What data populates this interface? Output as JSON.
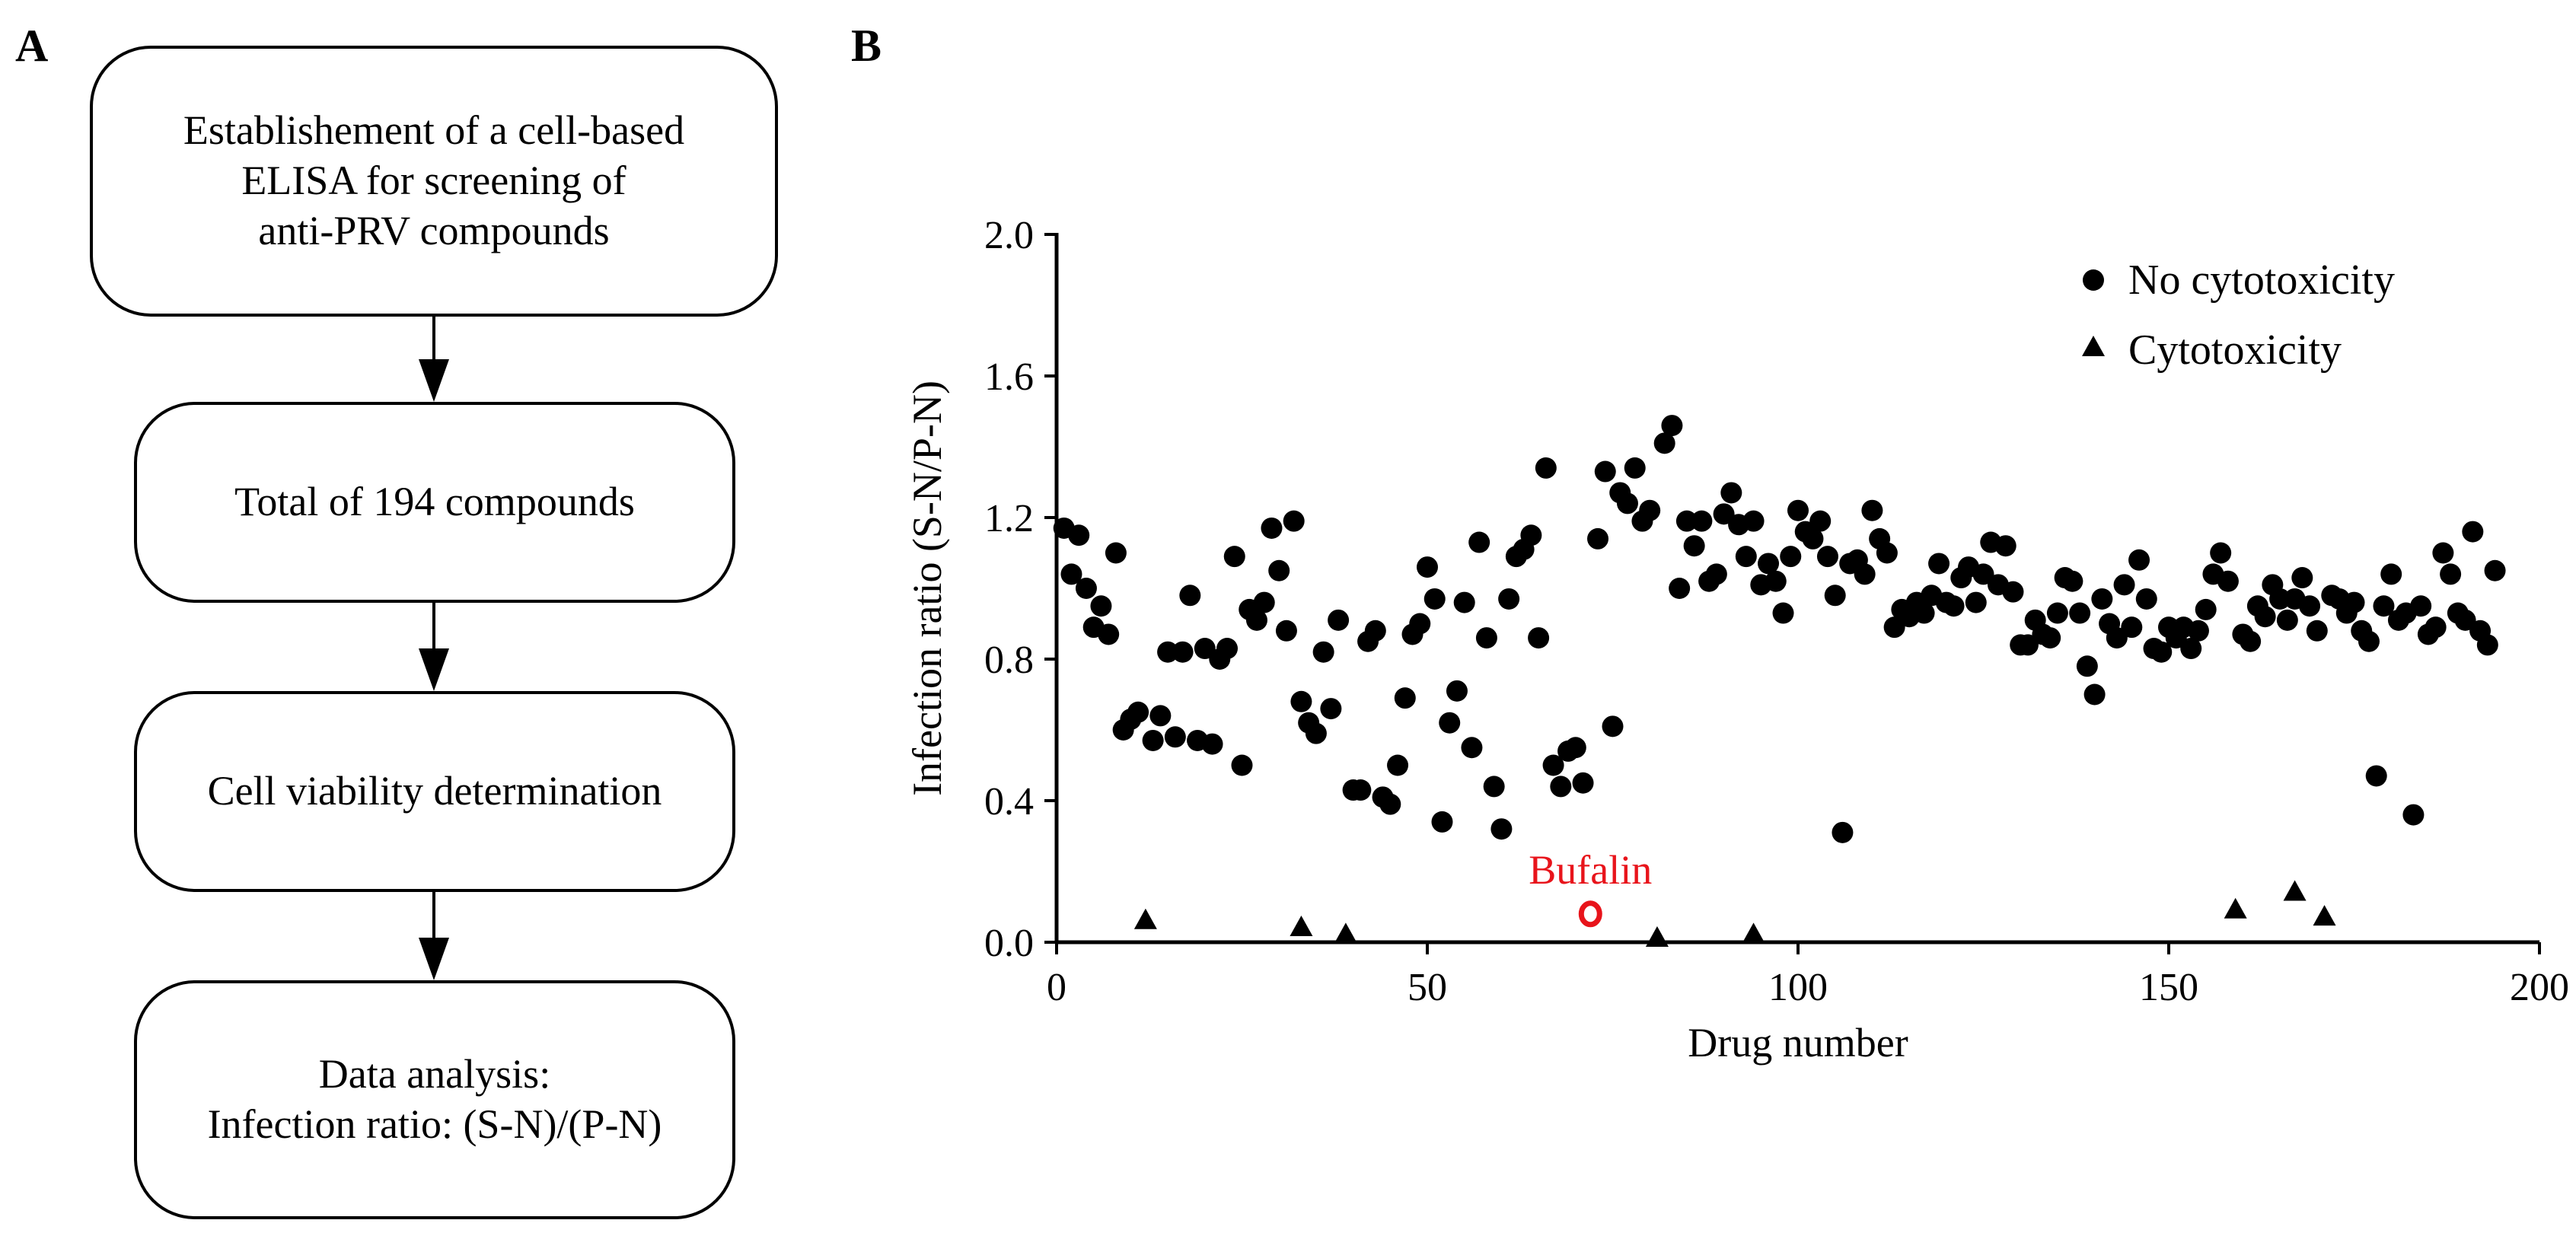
{
  "panels": {
    "a_label": "A",
    "b_label": "B"
  },
  "flowchart": {
    "steps": [
      {
        "lines": [
          "Establishement of a cell-based",
          "ELISA for screening of",
          "anti-PRV compounds"
        ]
      },
      {
        "lines": [
          "Total of 194 compounds"
        ]
      },
      {
        "lines": [
          "Cell viability determination"
        ]
      },
      {
        "lines": [
          "Data analysis:",
          "Infection ratio: (S-N)/(P-N)"
        ]
      }
    ]
  },
  "chart_data": {
    "type": "scatter",
    "xlabel": "Drug number",
    "ylabel": "Infection ratio (S-N/P-N)",
    "xlim": [
      0,
      200
    ],
    "ylim": [
      0,
      2.0
    ],
    "xticks": [
      "0",
      "50",
      "100",
      "150",
      "200"
    ],
    "yticks": [
      "0.0",
      "0.4",
      "0.8",
      "1.2",
      "1.6",
      "2.0"
    ],
    "legend_position": "top-right",
    "colors": {
      "points": "#000000",
      "highlight": "#e8141b"
    },
    "series": [
      {
        "name": "No cytotoxicity",
        "marker": "circle",
        "points": [
          [
            1,
            1.17
          ],
          [
            2,
            1.04
          ],
          [
            3,
            1.15
          ],
          [
            4,
            1.0
          ],
          [
            5,
            0.89
          ],
          [
            6,
            0.95
          ],
          [
            7,
            0.87
          ],
          [
            8,
            1.1
          ],
          [
            9,
            0.6
          ],
          [
            10,
            0.63
          ],
          [
            11,
            0.65
          ],
          [
            13,
            0.57
          ],
          [
            14,
            0.64
          ],
          [
            15,
            0.82
          ],
          [
            16,
            0.58
          ],
          [
            17,
            0.82
          ],
          [
            18,
            0.98
          ],
          [
            19,
            0.57
          ],
          [
            20,
            0.83
          ],
          [
            21,
            0.56
          ],
          [
            22,
            0.8
          ],
          [
            23,
            0.83
          ],
          [
            24,
            1.09
          ],
          [
            25,
            0.5
          ],
          [
            26,
            0.94
          ],
          [
            27,
            0.91
          ],
          [
            28,
            0.96
          ],
          [
            29,
            1.17
          ],
          [
            30,
            1.05
          ],
          [
            31,
            0.88
          ],
          [
            32,
            1.19
          ],
          [
            33,
            0.68
          ],
          [
            34,
            0.62
          ],
          [
            35,
            0.59
          ],
          [
            36,
            0.82
          ],
          [
            37,
            0.66
          ],
          [
            38,
            0.91
          ],
          [
            40,
            0.43
          ],
          [
            41,
            0.43
          ],
          [
            42,
            0.85
          ],
          [
            43,
            0.88
          ],
          [
            44,
            0.41
          ],
          [
            45,
            0.39
          ],
          [
            46,
            0.5
          ],
          [
            47,
            0.69
          ],
          [
            48,
            0.87
          ],
          [
            49,
            0.9
          ],
          [
            50,
            1.06
          ],
          [
            51,
            0.97
          ],
          [
            52,
            0.34
          ],
          [
            53,
            0.62
          ],
          [
            54,
            0.71
          ],
          [
            55,
            0.96
          ],
          [
            56,
            0.55
          ],
          [
            57,
            1.13
          ],
          [
            58,
            0.86
          ],
          [
            59,
            0.44
          ],
          [
            60,
            0.32
          ],
          [
            61,
            0.97
          ],
          [
            62,
            1.09
          ],
          [
            63,
            1.11
          ],
          [
            64,
            1.15
          ],
          [
            65,
            0.86
          ],
          [
            66,
            1.34
          ],
          [
            67,
            0.5
          ],
          [
            68,
            0.44
          ],
          [
            69,
            0.54
          ],
          [
            70,
            0.55
          ],
          [
            71,
            0.45
          ],
          [
            73,
            1.14
          ],
          [
            74,
            1.33
          ],
          [
            75,
            0.61
          ],
          [
            76,
            1.27
          ],
          [
            77,
            1.24
          ],
          [
            78,
            1.34
          ],
          [
            79,
            1.19
          ],
          [
            80,
            1.22
          ],
          [
            82,
            1.41
          ],
          [
            83,
            1.46
          ],
          [
            84,
            1.0
          ],
          [
            85,
            1.19
          ],
          [
            86,
            1.12
          ],
          [
            87,
            1.19
          ],
          [
            88,
            1.02
          ],
          [
            89,
            1.04
          ],
          [
            90,
            1.21
          ],
          [
            91,
            1.27
          ],
          [
            92,
            1.18
          ],
          [
            93,
            1.09
          ],
          [
            94,
            1.19
          ],
          [
            95,
            1.01
          ],
          [
            96,
            1.07
          ],
          [
            97,
            1.02
          ],
          [
            98,
            0.93
          ],
          [
            99,
            1.09
          ],
          [
            100,
            1.22
          ],
          [
            101,
            1.16
          ],
          [
            102,
            1.14
          ],
          [
            103,
            1.19
          ],
          [
            104,
            1.09
          ],
          [
            105,
            0.98
          ],
          [
            106,
            0.31
          ],
          [
            107,
            1.07
          ],
          [
            108,
            1.08
          ],
          [
            109,
            1.04
          ],
          [
            110,
            1.22
          ],
          [
            111,
            1.14
          ],
          [
            112,
            1.1
          ],
          [
            113,
            0.89
          ],
          [
            114,
            0.94
          ],
          [
            115,
            0.92
          ],
          [
            116,
            0.96
          ],
          [
            117,
            0.93
          ],
          [
            118,
            0.98
          ],
          [
            119,
            1.07
          ],
          [
            120,
            0.96
          ],
          [
            121,
            0.95
          ],
          [
            122,
            1.03
          ],
          [
            123,
            1.06
          ],
          [
            124,
            0.96
          ],
          [
            125,
            1.04
          ],
          [
            126,
            1.13
          ],
          [
            127,
            1.01
          ],
          [
            128,
            1.12
          ],
          [
            129,
            0.99
          ],
          [
            130,
            0.84
          ],
          [
            131,
            0.84
          ],
          [
            132,
            0.91
          ],
          [
            133,
            0.87
          ],
          [
            134,
            0.86
          ],
          [
            135,
            0.93
          ],
          [
            136,
            1.03
          ],
          [
            137,
            1.02
          ],
          [
            138,
            0.93
          ],
          [
            139,
            0.78
          ],
          [
            140,
            0.7
          ],
          [
            141,
            0.97
          ],
          [
            142,
            0.9
          ],
          [
            143,
            0.86
          ],
          [
            144,
            1.01
          ],
          [
            145,
            0.89
          ],
          [
            146,
            1.08
          ],
          [
            147,
            0.97
          ],
          [
            148,
            0.83
          ],
          [
            149,
            0.82
          ],
          [
            150,
            0.89
          ],
          [
            151,
            0.86
          ],
          [
            152,
            0.89
          ],
          [
            153,
            0.83
          ],
          [
            154,
            0.88
          ],
          [
            155,
            0.94
          ],
          [
            156,
            1.04
          ],
          [
            157,
            1.1
          ],
          [
            158,
            1.02
          ],
          [
            160,
            0.87
          ],
          [
            161,
            0.85
          ],
          [
            162,
            0.95
          ],
          [
            163,
            0.92
          ],
          [
            164,
            1.01
          ],
          [
            165,
            0.97
          ],
          [
            166,
            0.91
          ],
          [
            167,
            0.97
          ],
          [
            168,
            1.03
          ],
          [
            169,
            0.95
          ],
          [
            170,
            0.88
          ],
          [
            172,
            0.98
          ],
          [
            173,
            0.97
          ],
          [
            174,
            0.93
          ],
          [
            175,
            0.96
          ],
          [
            176,
            0.88
          ],
          [
            177,
            0.85
          ],
          [
            178,
            0.47
          ],
          [
            179,
            0.95
          ],
          [
            180,
            1.04
          ],
          [
            181,
            0.91
          ],
          [
            182,
            0.93
          ],
          [
            183,
            0.36
          ],
          [
            184,
            0.95
          ],
          [
            185,
            0.87
          ],
          [
            186,
            0.89
          ],
          [
            187,
            1.1
          ],
          [
            188,
            1.04
          ],
          [
            189,
            0.93
          ],
          [
            190,
            0.91
          ],
          [
            191,
            1.16
          ],
          [
            192,
            0.88
          ],
          [
            193,
            0.84
          ],
          [
            194,
            1.05
          ]
        ]
      },
      {
        "name": "Cytotoxicity",
        "marker": "triangle",
        "points": [
          [
            12,
            0.05
          ],
          [
            33,
            0.03
          ],
          [
            39,
            0.01
          ],
          [
            81,
            0.0
          ],
          [
            94,
            0.01
          ],
          [
            159,
            0.08
          ],
          [
            167,
            0.13
          ],
          [
            171,
            0.06
          ]
        ]
      }
    ],
    "annotations": [
      {
        "label": "Bufalin",
        "x": 72,
        "y": 0.08,
        "marker": "open-circle"
      }
    ]
  }
}
